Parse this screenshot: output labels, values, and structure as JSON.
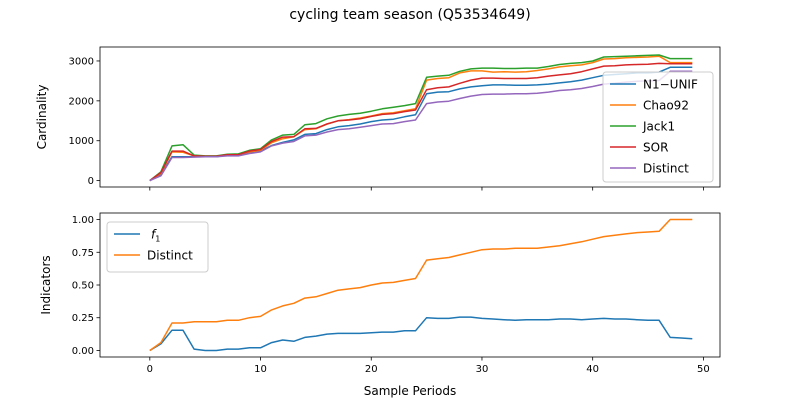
{
  "chart_data": [
    {
      "type": "line",
      "title": "cycling team season (Q53534649)",
      "xlabel": "",
      "ylabel": "Cardinality",
      "xlim": [
        -4.5,
        51.5
      ],
      "ylim": [
        -160,
        3350
      ],
      "xticks": [
        0,
        10,
        20,
        30,
        40,
        50
      ],
      "yticks": [
        0,
        1000,
        2000,
        3000
      ],
      "legend": "center-right",
      "x": [
        0,
        1,
        2,
        3,
        4,
        5,
        6,
        7,
        8,
        9,
        10,
        11,
        12,
        13,
        14,
        15,
        16,
        17,
        18,
        19,
        20,
        21,
        22,
        23,
        24,
        25,
        26,
        27,
        28,
        29,
        30,
        31,
        32,
        33,
        34,
        35,
        36,
        37,
        38,
        39,
        40,
        41,
        42,
        43,
        44,
        45,
        46,
        47,
        48,
        49
      ],
      "series": [
        {
          "name": "N1−UNIF",
          "color": "#1f77b4",
          "values": [
            0,
            150,
            600,
            600,
            600,
            600,
            600,
            640,
            650,
            700,
            740,
            880,
            960,
            1020,
            1160,
            1180,
            1280,
            1350,
            1380,
            1420,
            1480,
            1520,
            1540,
            1600,
            1650,
            2180,
            2220,
            2230,
            2300,
            2350,
            2380,
            2400,
            2400,
            2390,
            2390,
            2400,
            2420,
            2450,
            2480,
            2520,
            2580,
            2640,
            2660,
            2680,
            2700,
            2700,
            2720,
            2840,
            2840,
            2840
          ]
        },
        {
          "name": "Chao92",
          "color": "#ff7f0e",
          "values": [
            0,
            180,
            720,
            710,
            620,
            610,
            610,
            640,
            650,
            720,
            760,
            950,
            1050,
            1100,
            1280,
            1300,
            1420,
            1500,
            1530,
            1570,
            1620,
            1680,
            1700,
            1750,
            1800,
            2520,
            2560,
            2580,
            2700,
            2750,
            2750,
            2720,
            2730,
            2720,
            2730,
            2760,
            2800,
            2850,
            2880,
            2900,
            2960,
            3050,
            3060,
            3080,
            3090,
            3100,
            3120,
            2960,
            2960,
            2960
          ]
        },
        {
          "name": "Jack1",
          "color": "#2ca02c",
          "values": [
            0,
            220,
            870,
            900,
            640,
            620,
            620,
            660,
            670,
            760,
            800,
            1020,
            1140,
            1160,
            1400,
            1430,
            1550,
            1620,
            1660,
            1690,
            1740,
            1800,
            1840,
            1880,
            1930,
            2590,
            2620,
            2640,
            2740,
            2800,
            2820,
            2820,
            2810,
            2810,
            2820,
            2820,
            2860,
            2910,
            2940,
            2960,
            3000,
            3100,
            3110,
            3120,
            3130,
            3140,
            3150,
            3060,
            3060,
            3060
          ]
        },
        {
          "name": "SOR",
          "color": "#d62728",
          "values": [
            0,
            200,
            740,
            740,
            620,
            610,
            610,
            650,
            650,
            740,
            780,
            980,
            1090,
            1100,
            1300,
            1310,
            1420,
            1500,
            1520,
            1550,
            1610,
            1660,
            1680,
            1730,
            1770,
            2280,
            2330,
            2350,
            2440,
            2520,
            2570,
            2570,
            2560,
            2560,
            2560,
            2580,
            2620,
            2650,
            2680,
            2730,
            2800,
            2870,
            2880,
            2900,
            2910,
            2920,
            2940,
            2930,
            2930,
            2930
          ]
        },
        {
          "name": "Distinct",
          "color": "#9467bd",
          "values": [
            0,
            120,
            580,
            580,
            590,
            600,
            600,
            620,
            620,
            680,
            720,
            870,
            940,
            980,
            1120,
            1140,
            1220,
            1280,
            1300,
            1340,
            1380,
            1420,
            1430,
            1480,
            1520,
            1930,
            1970,
            1990,
            2060,
            2120,
            2160,
            2170,
            2170,
            2180,
            2180,
            2190,
            2220,
            2260,
            2280,
            2310,
            2360,
            2420,
            2440,
            2470,
            2490,
            2500,
            2510,
            2740,
            2740,
            2740
          ]
        }
      ]
    },
    {
      "type": "line",
      "title": "",
      "xlabel": "Sample Periods",
      "ylabel": "Indicators",
      "xlim": [
        -4.5,
        51.5
      ],
      "ylim": [
        -0.05,
        1.05
      ],
      "xticks": [
        0,
        10,
        20,
        30,
        40,
        50
      ],
      "yticks": [
        0.0,
        0.25,
        0.5,
        0.75,
        1.0
      ],
      "ytick_labels": [
        "0.00",
        "0.25",
        "0.50",
        "0.75",
        "1.00"
      ],
      "legend": "top-left",
      "x": [
        0,
        1,
        2,
        3,
        4,
        5,
        6,
        7,
        8,
        9,
        10,
        11,
        12,
        13,
        14,
        15,
        16,
        17,
        18,
        19,
        20,
        21,
        22,
        23,
        24,
        25,
        26,
        27,
        28,
        29,
        30,
        31,
        32,
        33,
        34,
        35,
        36,
        37,
        38,
        39,
        40,
        41,
        42,
        43,
        44,
        45,
        46,
        47,
        48,
        49
      ],
      "series": [
        {
          "name": "f1",
          "color": "#1f77b4",
          "values": [
            0.0,
            0.05,
            0.155,
            0.155,
            0.01,
            0.0,
            0.0,
            0.01,
            0.01,
            0.02,
            0.02,
            0.06,
            0.08,
            0.07,
            0.1,
            0.11,
            0.125,
            0.13,
            0.13,
            0.13,
            0.135,
            0.14,
            0.14,
            0.15,
            0.15,
            0.25,
            0.245,
            0.245,
            0.255,
            0.255,
            0.245,
            0.24,
            0.235,
            0.23,
            0.235,
            0.235,
            0.235,
            0.24,
            0.24,
            0.235,
            0.24,
            0.245,
            0.24,
            0.24,
            0.235,
            0.23,
            0.23,
            0.1,
            0.095,
            0.09
          ]
        },
        {
          "name": "Distinct",
          "color": "#ff7f0e",
          "values": [
            0.0,
            0.06,
            0.21,
            0.21,
            0.22,
            0.22,
            0.22,
            0.23,
            0.23,
            0.25,
            0.26,
            0.31,
            0.34,
            0.36,
            0.4,
            0.41,
            0.435,
            0.46,
            0.47,
            0.48,
            0.5,
            0.515,
            0.52,
            0.535,
            0.55,
            0.69,
            0.7,
            0.71,
            0.73,
            0.75,
            0.77,
            0.775,
            0.775,
            0.78,
            0.78,
            0.78,
            0.79,
            0.8,
            0.815,
            0.83,
            0.85,
            0.87,
            0.88,
            0.89,
            0.9,
            0.905,
            0.91,
            1.0,
            1.0,
            1.0
          ]
        }
      ]
    }
  ]
}
